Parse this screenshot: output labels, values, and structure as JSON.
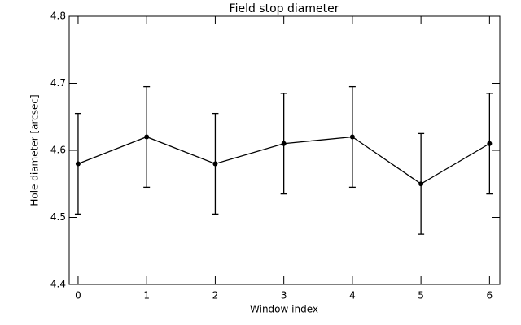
{
  "chart_data": {
    "type": "errorbar-line",
    "title": "Field stop diameter",
    "x_label": "Window index",
    "y_label": "Hole diameter [arcsec]",
    "series": [
      {
        "color": "#000000",
        "x": [
          0,
          1,
          2,
          3,
          4,
          5,
          6
        ],
        "values": [
          4.58,
          4.62,
          4.58,
          4.61,
          4.62,
          4.55,
          4.61
        ],
        "errors": [
          0.075,
          0.075,
          0.075,
          0.075,
          0.075,
          0.075,
          0.075
        ]
      }
    ],
    "xlim": [
      -0.13,
      6.15
    ],
    "xticks": [
      0,
      1,
      2,
      3,
      4,
      5,
      6
    ],
    "ylim": [
      4.4,
      4.8
    ],
    "yticks": [
      4.4,
      4.5,
      4.6,
      4.7,
      4.8
    ]
  }
}
